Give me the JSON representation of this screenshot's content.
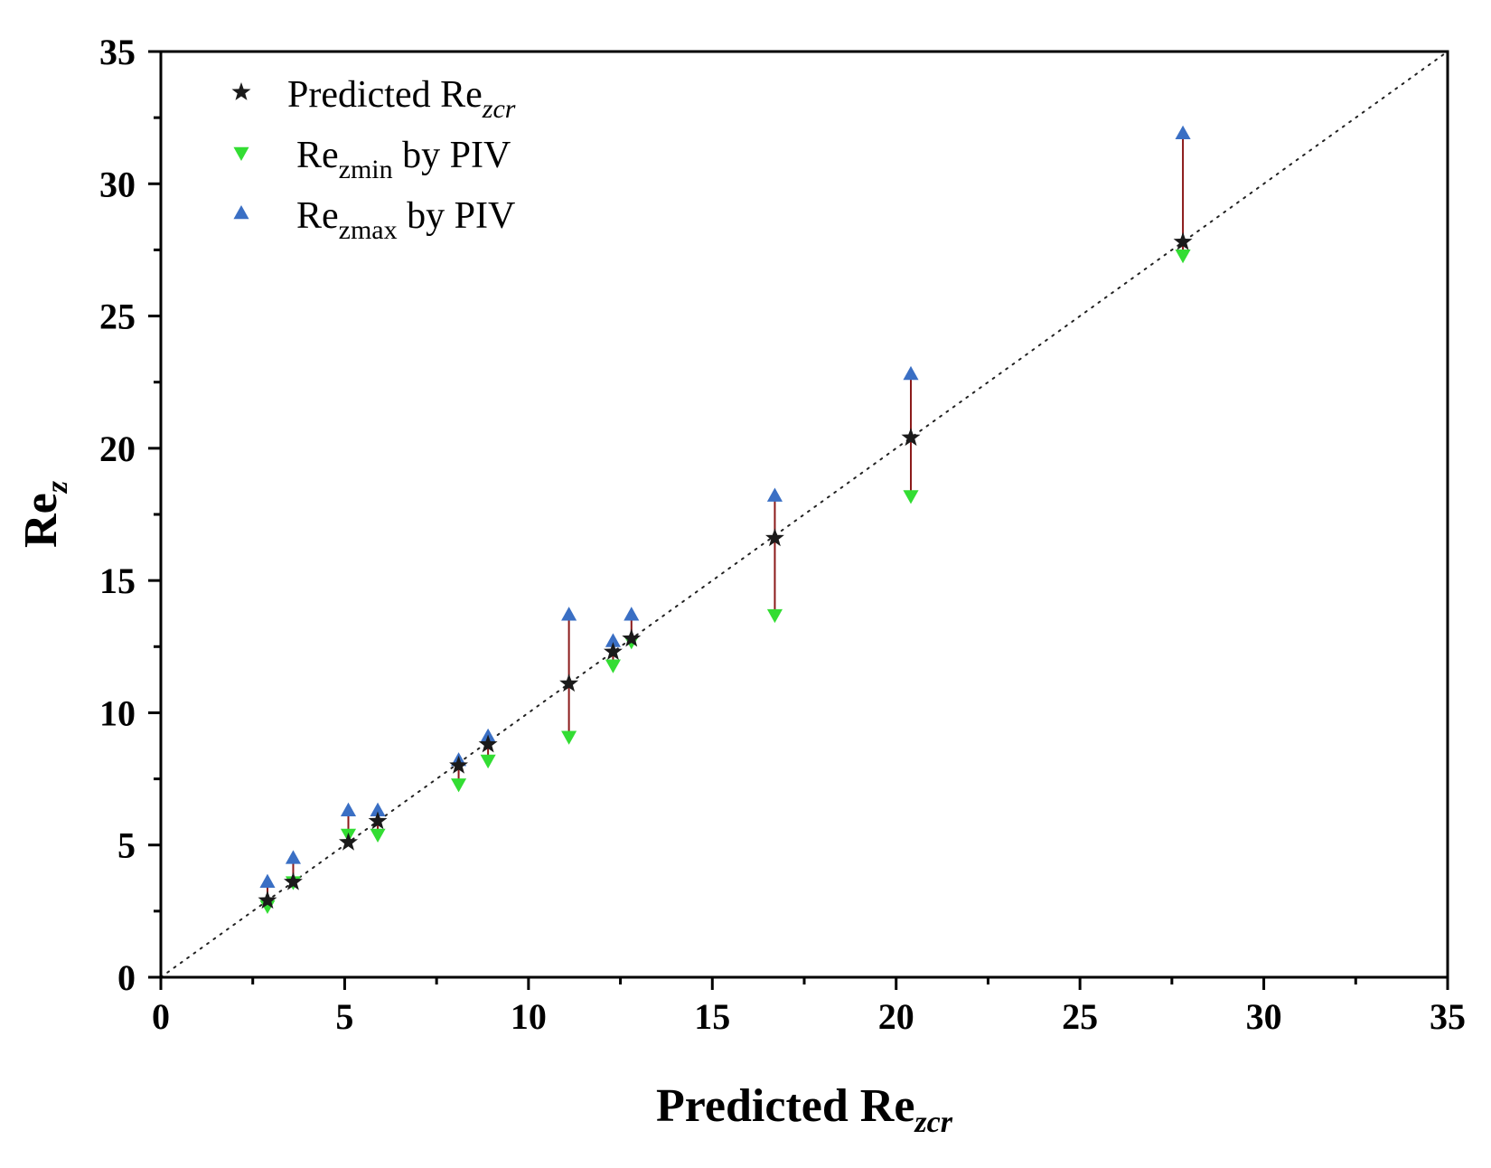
{
  "chart_data": {
    "type": "scatter",
    "title": "",
    "xlabel": {
      "main": "Predicted Re",
      "sub": "zcr"
    },
    "ylabel": {
      "main": "Re",
      "sub": "z"
    },
    "xlim": [
      0,
      35
    ],
    "ylim": [
      0,
      35
    ],
    "xticks": [
      "0",
      "5",
      "10",
      "15",
      "20",
      "25",
      "30",
      "35"
    ],
    "yticks": [
      "0",
      "5",
      "10",
      "15",
      "20",
      "25",
      "30",
      "35"
    ],
    "grid": false,
    "legend_position": "top-left",
    "reference_line": {
      "type": "y=x",
      "style": "dotted"
    },
    "series": [
      {
        "name": "Predicted Re",
        "name_sub": "zcr",
        "name_suffix": "",
        "marker": "star",
        "color": "#1a1a1a"
      },
      {
        "name": "Re",
        "name_sub": "zmin",
        "name_suffix": " by PIV",
        "marker": "triangle-down",
        "color": "#33dd33"
      },
      {
        "name": "Re",
        "name_sub": "zmax",
        "name_suffix": " by PIV",
        "marker": "triangle-up",
        "color": "#3a6fc4"
      }
    ],
    "range_bar_color": "#8b1a1a",
    "points": [
      {
        "x": 2.9,
        "predicted": 2.9,
        "min": 2.7,
        "max": 3.6
      },
      {
        "x": 3.6,
        "predicted": 3.6,
        "min": 3.6,
        "max": 4.5
      },
      {
        "x": 5.1,
        "predicted": 5.1,
        "min": 5.4,
        "max": 6.3
      },
      {
        "x": 5.9,
        "predicted": 5.9,
        "min": 5.4,
        "max": 6.3
      },
      {
        "x": 8.1,
        "predicted": 8.0,
        "min": 7.3,
        "max": 8.2
      },
      {
        "x": 8.9,
        "predicted": 8.8,
        "min": 8.2,
        "max": 9.1
      },
      {
        "x": 11.1,
        "predicted": 11.1,
        "min": 9.1,
        "max": 13.7
      },
      {
        "x": 12.3,
        "predicted": 12.3,
        "min": 11.8,
        "max": 12.7
      },
      {
        "x": 12.8,
        "predicted": 12.8,
        "min": 12.7,
        "max": 13.7
      },
      {
        "x": 16.7,
        "predicted": 16.6,
        "min": 13.7,
        "max": 18.2
      },
      {
        "x": 20.4,
        "predicted": 20.4,
        "min": 18.2,
        "max": 22.8
      },
      {
        "x": 27.8,
        "predicted": 27.8,
        "min": 27.3,
        "max": 31.9
      }
    ]
  }
}
